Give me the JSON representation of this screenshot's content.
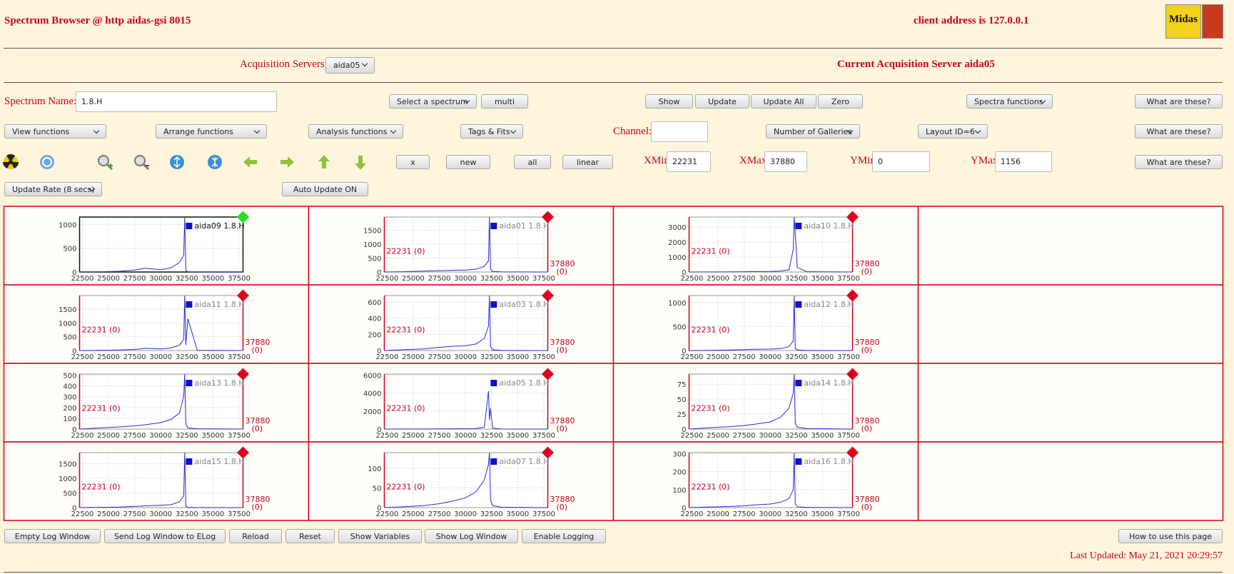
{
  "header": {
    "title": "Spectrum Browser @ http aidas-gsi 8015",
    "client": "client address is 127.0.0.1",
    "logo": "Midas"
  },
  "servers": {
    "label": "Acquisition Servers",
    "selected": "aida05",
    "current": "Current Acquisition Server aida05"
  },
  "controls": {
    "spectrum_label": "Spectrum Name:",
    "spectrum_name": "1.8.H",
    "row1_buttons": [
      "Select a spectrum",
      "multi",
      "Show",
      "Update",
      "Update All",
      "Zero",
      "Spectra functions",
      "What are these?"
    ],
    "row2_buttons": [
      "View functions",
      "Arrange functions",
      "Analysis functions",
      "Tags & Fits",
      "Number of Galleries",
      "Layout ID=6",
      "What are these?"
    ],
    "channel_label": "Channel:",
    "row3_buttons": [
      "x",
      "new",
      "all",
      "linear",
      "What are these?"
    ],
    "xmin_label": "XMin",
    "xmin": 22231,
    "xmax_label": "XMax",
    "xmax": 37880,
    "ymin_label": "YMin",
    "ymin": 0,
    "ymax_label": "YMax",
    "ymax": 1156,
    "update_rate": "Update Rate (8 secs)",
    "auto_update": "Auto Update ON"
  },
  "gallery": {
    "xlim": [
      22231,
      37880
    ],
    "xticks": [
      22500,
      25000,
      27500,
      30000,
      32500,
      35000,
      37500
    ],
    "x": [
      22231,
      24000,
      26000,
      27500,
      28500,
      30000,
      31000,
      31800,
      32200,
      32300,
      32400,
      32600,
      33500,
      37880
    ],
    "panels": [
      {
        "title": "aida09 1.8.H",
        "selected": true,
        "ylim": [
          0,
          1156
        ],
        "yticks": [
          0,
          500,
          1000
        ],
        "values": [
          0,
          5,
          15,
          40,
          80,
          50,
          90,
          200,
          350,
          1156,
          30,
          5,
          2,
          0
        ]
      },
      {
        "title": "aida01 1.8.H",
        "ylim": [
          0,
          1980
        ],
        "yticks": [
          0,
          500,
          1000,
          1500
        ],
        "values": [
          0,
          10,
          30,
          50,
          60,
          70,
          100,
          200,
          400,
          1980,
          100,
          20,
          5,
          0
        ],
        "min_label": "22231 (0)",
        "max_label": [
          "37880",
          "(0)"
        ]
      },
      {
        "title": "aida10 1.8.H",
        "ylim": [
          0,
          3680
        ],
        "yticks": [
          0,
          1000,
          2000,
          3000
        ],
        "values": [
          0,
          5,
          10,
          20,
          30,
          40,
          60,
          150,
          1500,
          3680,
          2500,
          300,
          20,
          0
        ],
        "min_label": "22231 (0)",
        "max_label": [
          "37880",
          "(0)"
        ]
      },
      {
        "title": "aida11 1.8.H",
        "ylim": [
          0,
          1990
        ],
        "yticks": [
          0,
          500,
          1000,
          1500
        ],
        "values": [
          0,
          5,
          20,
          40,
          80,
          60,
          90,
          200,
          400,
          1990,
          200,
          1150,
          10,
          0
        ],
        "min_label": "22231 (0)",
        "max_label": [
          "37880",
          "(0)"
        ]
      },
      {
        "title": "aida03 1.8.H",
        "ylim": [
          0,
          680
        ],
        "yticks": [
          0,
          200,
          400,
          600
        ],
        "values": [
          0,
          10,
          20,
          40,
          50,
          60,
          80,
          150,
          300,
          680,
          50,
          10,
          3,
          0
        ],
        "min_label": "22231 (0)",
        "max_label": [
          "37880",
          "(0)"
        ]
      },
      {
        "title": "aida12 1.8.H",
        "ylim": [
          0,
          1150
        ],
        "yticks": [
          0,
          500,
          1000
        ],
        "values": [
          0,
          5,
          10,
          20,
          25,
          30,
          40,
          80,
          200,
          1150,
          40,
          10,
          2,
          0
        ],
        "min_label": "22231 (0)",
        "max_label": [
          "37880",
          "(0)"
        ]
      },
      {
        "title": "aida13 1.8.H",
        "ylim": [
          0,
          510
        ],
        "yticks": [
          0,
          100,
          200,
          300,
          400,
          500
        ],
        "values": [
          0,
          10,
          20,
          30,
          40,
          60,
          90,
          150,
          300,
          510,
          50,
          10,
          3,
          0
        ],
        "min_label": "22231 (0)",
        "max_label": [
          "37880",
          "(0)"
        ]
      },
      {
        "title": "aida05 1.8.H",
        "ylim": [
          0,
          6100
        ],
        "yticks": [
          0,
          2000,
          4000,
          6000
        ],
        "values": [
          0,
          5,
          10,
          20,
          30,
          40,
          60,
          200,
          4200,
          1000,
          2300,
          100,
          10,
          0
        ],
        "min_label": "22231 (0)",
        "max_label": [
          "37880",
          "(0)"
        ]
      },
      {
        "title": "aida14 1.8.H",
        "ylim": [
          0,
          92
        ],
        "yticks": [
          0,
          25,
          50,
          75
        ],
        "values": [
          0,
          2,
          4,
          6,
          8,
          12,
          20,
          35,
          60,
          92,
          10,
          3,
          1,
          0
        ],
        "min_label": "22231 (0)",
        "max_label": [
          "37880",
          "(0)"
        ]
      },
      {
        "title": "aida15 1.8.H",
        "ylim": [
          0,
          1875
        ],
        "yticks": [
          0,
          500,
          1000,
          1500
        ],
        "values": [
          0,
          10,
          20,
          40,
          60,
          80,
          100,
          200,
          400,
          1875,
          50,
          10,
          3,
          0
        ],
        "min_label": "22231 (0)",
        "max_label": [
          "37880",
          "(0)"
        ]
      },
      {
        "title": "aida07 1.8.H",
        "ylim": [
          0,
          140
        ],
        "yticks": [
          0,
          50,
          100
        ],
        "values": [
          0,
          2,
          5,
          10,
          15,
          25,
          40,
          70,
          110,
          140,
          20,
          5,
          1,
          0
        ],
        "min_label": "22231 (0)",
        "max_label": [
          "37880",
          "(0)"
        ]
      },
      {
        "title": "aida16 1.8.H",
        "ylim": [
          0,
          305
        ],
        "yticks": [
          0,
          100,
          200,
          300
        ],
        "values": [
          0,
          3,
          6,
          10,
          15,
          20,
          30,
          50,
          100,
          305,
          20,
          5,
          1,
          0
        ],
        "min_label": "22231 (0)",
        "max_label": [
          "37880",
          "(0)"
        ]
      }
    ]
  },
  "footer": {
    "buttons": [
      "Empty Log Window",
      "Send Log Window to ELog",
      "Reload",
      "Reset",
      "Show Variables",
      "Show Log Window",
      "Enable Logging",
      "How to use this page"
    ],
    "last_updated": "Last Updated: May 21, 2021 20:29:57"
  }
}
